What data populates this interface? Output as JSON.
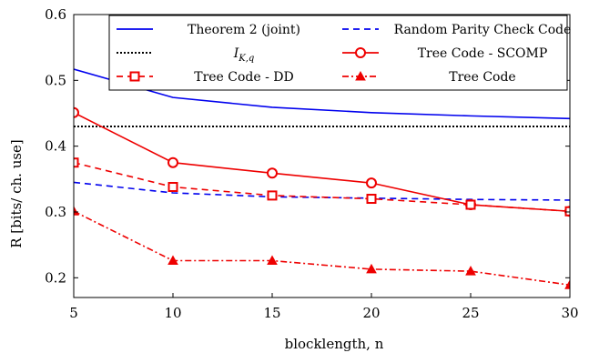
{
  "chart_data": {
    "type": "line",
    "xlabel": "blocklength, n",
    "ylabel": "R [bits/ ch. use]",
    "xlim": [
      5,
      30
    ],
    "ylim": [
      0.17,
      0.6
    ],
    "xticks": [
      "5",
      "10",
      "15",
      "20",
      "25",
      "30"
    ],
    "yticks": [
      "0.2",
      "0.3",
      "0.4",
      "0.5",
      "0.6"
    ],
    "grid": false,
    "legend_position": "top-right",
    "series": [
      {
        "name": "Theorem 2 (joint)",
        "color": "#0000ee",
        "style": "solid",
        "marker": "none",
        "x": [
          5,
          10,
          15,
          20,
          25,
          30
        ],
        "y": [
          0.517,
          0.474,
          0.459,
          0.451,
          0.446,
          0.442
        ]
      },
      {
        "name": "Random Parity Check Code",
        "color": "#0000ee",
        "style": "dashed",
        "marker": "none",
        "x": [
          5,
          10,
          15,
          20,
          25,
          30
        ],
        "y": [
          0.345,
          0.329,
          0.323,
          0.321,
          0.319,
          0.318
        ]
      },
      {
        "name": "I_{K,q}",
        "color": "#000000",
        "style": "dotted",
        "marker": "none",
        "x": [
          5,
          30
        ],
        "y": [
          0.43,
          0.43
        ]
      },
      {
        "name": "Tree Code - SCOMP",
        "color": "#ee0000",
        "style": "solid",
        "marker": "circle",
        "x": [
          5,
          10,
          15,
          20,
          25,
          30
        ],
        "y": [
          0.451,
          0.375,
          0.359,
          0.344,
          0.311,
          0.301
        ]
      },
      {
        "name": "Tree Code - DD",
        "color": "#ee0000",
        "style": "dashed",
        "marker": "square",
        "x": [
          5,
          10,
          15,
          20,
          25,
          30
        ],
        "y": [
          0.375,
          0.338,
          0.325,
          0.32,
          0.311,
          0.301
        ]
      },
      {
        "name": "Tree Code",
        "color": "#ee0000",
        "style": "dashdot",
        "marker": "triangle",
        "x": [
          5,
          10,
          15,
          20,
          25,
          30
        ],
        "y": [
          0.301,
          0.226,
          0.226,
          0.213,
          0.21,
          0.189
        ]
      }
    ],
    "legend": {
      "entries": [
        {
          "label": "Theorem 2 (joint)",
          "series": 0
        },
        {
          "label": "Random Parity Check Code",
          "series": 1
        },
        {
          "label": "I",
          "sub": "K,q",
          "series": 2
        },
        {
          "label": "Tree Code - SCOMP",
          "series": 3
        },
        {
          "label": "Tree Code - DD",
          "series": 4
        },
        {
          "label": "Tree Code",
          "series": 5
        }
      ]
    }
  }
}
